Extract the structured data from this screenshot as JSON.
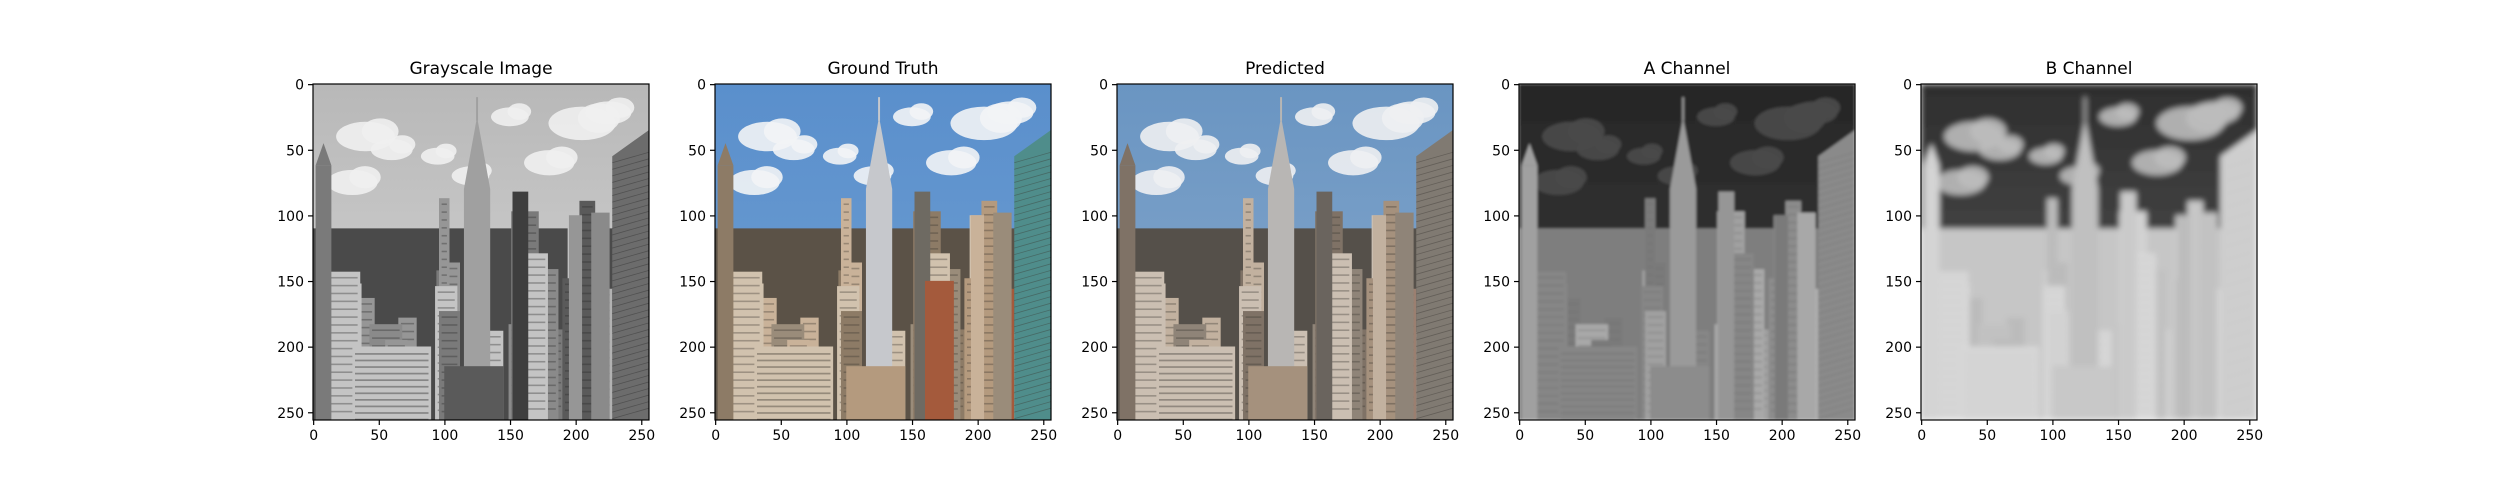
{
  "figure": {
    "background": "#ffffff",
    "panels": [
      {
        "id": "grayscale",
        "title": "Grayscale Image",
        "image_kind": "grayscale"
      },
      {
        "id": "ground-truth",
        "title": "Ground Truth",
        "image_kind": "color"
      },
      {
        "id": "predicted",
        "title": "Predicted",
        "image_kind": "color-muted"
      },
      {
        "id": "a-channel",
        "title": "A Channel",
        "image_kind": "a-channel"
      },
      {
        "id": "b-channel",
        "title": "B Channel",
        "image_kind": "b-channel"
      }
    ],
    "x_ticks": [
      0,
      50,
      100,
      150,
      200,
      250
    ],
    "y_ticks": [
      0,
      50,
      100,
      150,
      200,
      250
    ],
    "image_size": [
      256,
      256
    ],
    "colors": {
      "sky_blue": "#6f9fd2",
      "cloud": "#f2f4f6",
      "building_tan": "#b49a7e",
      "building_red": "#a45a3c",
      "glass_teal": "#4f8d8b"
    }
  }
}
